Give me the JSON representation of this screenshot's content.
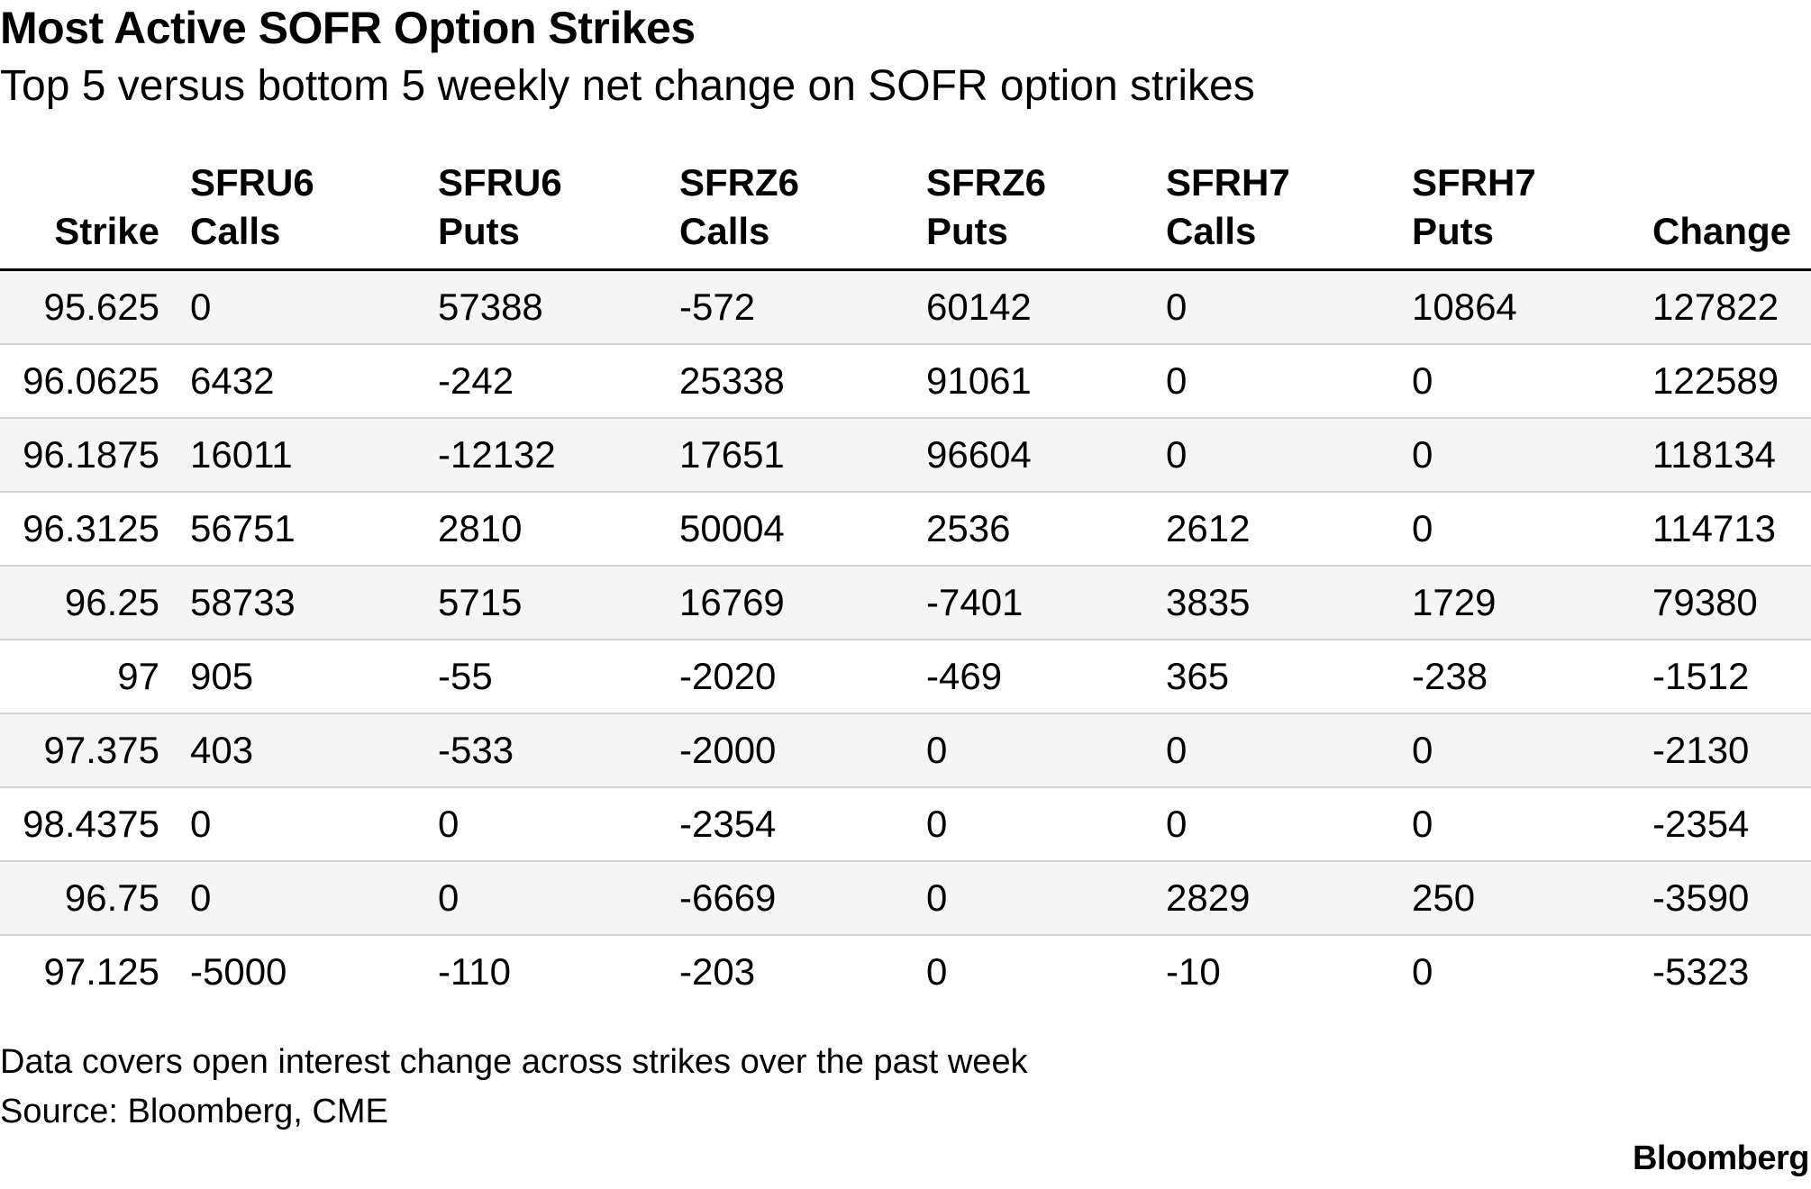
{
  "title": "Most Active SOFR Option Strikes",
  "subtitle": "Top 5 versus bottom 5 weekly net change on SOFR option strikes",
  "note": "Data covers open interest change across strikes over the past week",
  "source": "Source: Bloomberg, CME",
  "brand": "Bloomberg",
  "chart_data": {
    "type": "table",
    "columns": [
      {
        "line1": "",
        "line2": "Strike"
      },
      {
        "line1": "SFRU6",
        "line2": "Calls"
      },
      {
        "line1": "SFRU6",
        "line2": "Puts"
      },
      {
        "line1": "SFRZ6",
        "line2": "Calls"
      },
      {
        "line1": "SFRZ6",
        "line2": "Puts"
      },
      {
        "line1": "SFRH7",
        "line2": "Calls"
      },
      {
        "line1": "SFRH7",
        "line2": "Puts"
      },
      {
        "line1": "",
        "line2": "Change"
      }
    ],
    "rows": [
      [
        "95.625",
        "0",
        "57388",
        "-572",
        "60142",
        "0",
        "10864",
        "127822"
      ],
      [
        "96.0625",
        "6432",
        "-242",
        "25338",
        "91061",
        "0",
        "0",
        "122589"
      ],
      [
        "96.1875",
        "16011",
        "-12132",
        "17651",
        "96604",
        "0",
        "0",
        "118134"
      ],
      [
        "96.3125",
        "56751",
        "2810",
        "50004",
        "2536",
        "2612",
        "0",
        "114713"
      ],
      [
        "96.25",
        "58733",
        "5715",
        "16769",
        "-7401",
        "3835",
        "1729",
        "79380"
      ],
      [
        "97",
        "905",
        "-55",
        "-2020",
        "-469",
        "365",
        "-238",
        "-1512"
      ],
      [
        "97.375",
        "403",
        "-533",
        "-2000",
        "0",
        "0",
        "0",
        "-2130"
      ],
      [
        "98.4375",
        "0",
        "0",
        "-2354",
        "0",
        "0",
        "0",
        "-2354"
      ],
      [
        "96.75",
        "0",
        "0",
        "-6669",
        "0",
        "2829",
        "250",
        "-3590"
      ],
      [
        "97.125",
        "-5000",
        "-110",
        "-203",
        "0",
        "-10",
        "0",
        "-5323"
      ]
    ]
  }
}
